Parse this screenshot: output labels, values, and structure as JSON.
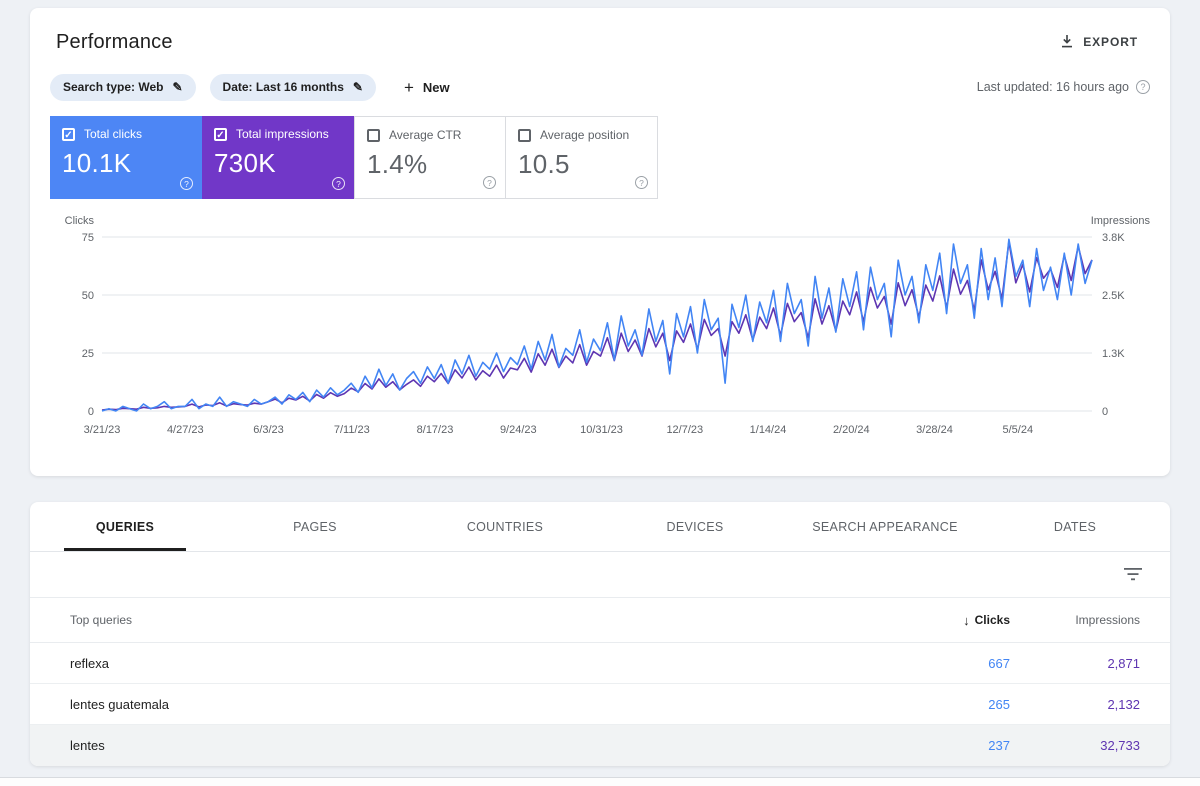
{
  "page": {
    "title": "Performance",
    "export_label": "EXPORT",
    "last_updated": "Last updated: 16 hours ago"
  },
  "filters": {
    "search_type_chip": "Search type: Web",
    "date_chip": "Date: Last 16 months",
    "new_label": "New"
  },
  "metrics": [
    {
      "label": "Total clicks",
      "value": "10.1K",
      "selected": true,
      "color": "#4d86f5"
    },
    {
      "label": "Total impressions",
      "value": "730K",
      "selected": true,
      "color": "#7137c8"
    },
    {
      "label": "Average CTR",
      "value": "1.4%",
      "selected": false
    },
    {
      "label": "Average position",
      "value": "10.5",
      "selected": false
    }
  ],
  "chart_data": {
    "type": "line",
    "left_axis": {
      "label": "Clicks",
      "max": 75,
      "ticks": [
        "75",
        "50",
        "25",
        "0"
      ]
    },
    "right_axis": {
      "label": "Impressions",
      "max": 3800,
      "ticks": [
        "3.8K",
        "2.5K",
        "1.3K",
        "0"
      ]
    },
    "x_labels": [
      "3/21/23",
      "4/27/23",
      "6/3/23",
      "7/11/23",
      "8/17/23",
      "9/24/23",
      "10/31/23",
      "12/7/23",
      "1/14/24",
      "2/20/24",
      "3/28/24",
      "5/5/24"
    ],
    "grid": true,
    "series": [
      {
        "name": "Total clicks",
        "axis": "left",
        "max": 75,
        "color": "#4285f4",
        "values": [
          0,
          1,
          0,
          2,
          1,
          0,
          3,
          1,
          2,
          4,
          1,
          2,
          2,
          5,
          1,
          3,
          2,
          6,
          2,
          4,
          3,
          2,
          5,
          3,
          4,
          6,
          3,
          7,
          5,
          8,
          4,
          9,
          6,
          10,
          7,
          9,
          12,
          8,
          15,
          10,
          18,
          11,
          16,
          9,
          14,
          17,
          12,
          19,
          14,
          20,
          12,
          22,
          16,
          24,
          15,
          21,
          18,
          25,
          17,
          23,
          20,
          28,
          18,
          30,
          22,
          33,
          19,
          27,
          24,
          35,
          21,
          31,
          26,
          38,
          22,
          41,
          28,
          35,
          24,
          44,
          30,
          39,
          16,
          42,
          32,
          45,
          25,
          48,
          35,
          40,
          12,
          46,
          36,
          50,
          30,
          47,
          38,
          52,
          30,
          55,
          42,
          48,
          28,
          58,
          40,
          53,
          34,
          57,
          45,
          60,
          35,
          62,
          48,
          55,
          32,
          65,
          50,
          58,
          38,
          63,
          52,
          68,
          42,
          72,
          55,
          63,
          40,
          70,
          48,
          66,
          45,
          74,
          58,
          65,
          45,
          70,
          52,
          62,
          48,
          68,
          50,
          72,
          55,
          65
        ]
      },
      {
        "name": "Total impressions",
        "axis": "right",
        "max": 3800,
        "color": "#5e35b1",
        "values": [
          20,
          40,
          30,
          60,
          50,
          40,
          80,
          60,
          70,
          100,
          80,
          90,
          100,
          150,
          90,
          130,
          120,
          180,
          110,
          160,
          140,
          130,
          170,
          150,
          200,
          260,
          180,
          280,
          240,
          320,
          220,
          360,
          280,
          400,
          320,
          380,
          500,
          420,
          600,
          480,
          700,
          520,
          640,
          460,
          580,
          680,
          540,
          760,
          640,
          820,
          600,
          900,
          720,
          960,
          680,
          880,
          760,
          1000,
          720,
          940,
          900,
          1150,
          850,
          1250,
          1000,
          1350,
          950,
          1200,
          1050,
          1450,
          1000,
          1300,
          1200,
          1600,
          1100,
          1700,
          1300,
          1550,
          1200,
          1800,
          1400,
          1700,
          1100,
          1750,
          1500,
          1900,
          1350,
          2000,
          1650,
          1800,
          1200,
          1950,
          1700,
          2100,
          1550,
          2050,
          1800,
          2250,
          1650,
          2350,
          1950,
          2150,
          1600,
          2450,
          1900,
          2300,
          1750,
          2400,
          2100,
          2600,
          1950,
          2700,
          2250,
          2500,
          1900,
          2800,
          2300,
          2650,
          2050,
          2750,
          2400,
          2950,
          2250,
          3100,
          2550,
          2850,
          2200,
          3300,
          2650,
          3050,
          2450,
          3700,
          2800,
          3200,
          2600,
          3350,
          2900,
          3100,
          2700,
          3400,
          2850,
          3600,
          3000,
          3300
        ]
      }
    ]
  },
  "tabs": [
    {
      "label": "QUERIES",
      "active": true
    },
    {
      "label": "PAGES",
      "active": false
    },
    {
      "label": "COUNTRIES",
      "active": false
    },
    {
      "label": "DEVICES",
      "active": false
    },
    {
      "label": "SEARCH APPEARANCE",
      "active": false
    },
    {
      "label": "DATES",
      "active": false
    }
  ],
  "table": {
    "columns": [
      "Top queries",
      "Clicks",
      "Impressions"
    ],
    "sort": {
      "column": "Clicks",
      "direction": "desc"
    },
    "rows": [
      {
        "query": "reflexa",
        "clicks": "667",
        "impressions": "2,871",
        "highlighted": false
      },
      {
        "query": "lentes guatemala",
        "clicks": "265",
        "impressions": "2,132",
        "highlighted": false
      },
      {
        "query": "lentes",
        "clicks": "237",
        "impressions": "32,733",
        "highlighted": true
      }
    ]
  }
}
